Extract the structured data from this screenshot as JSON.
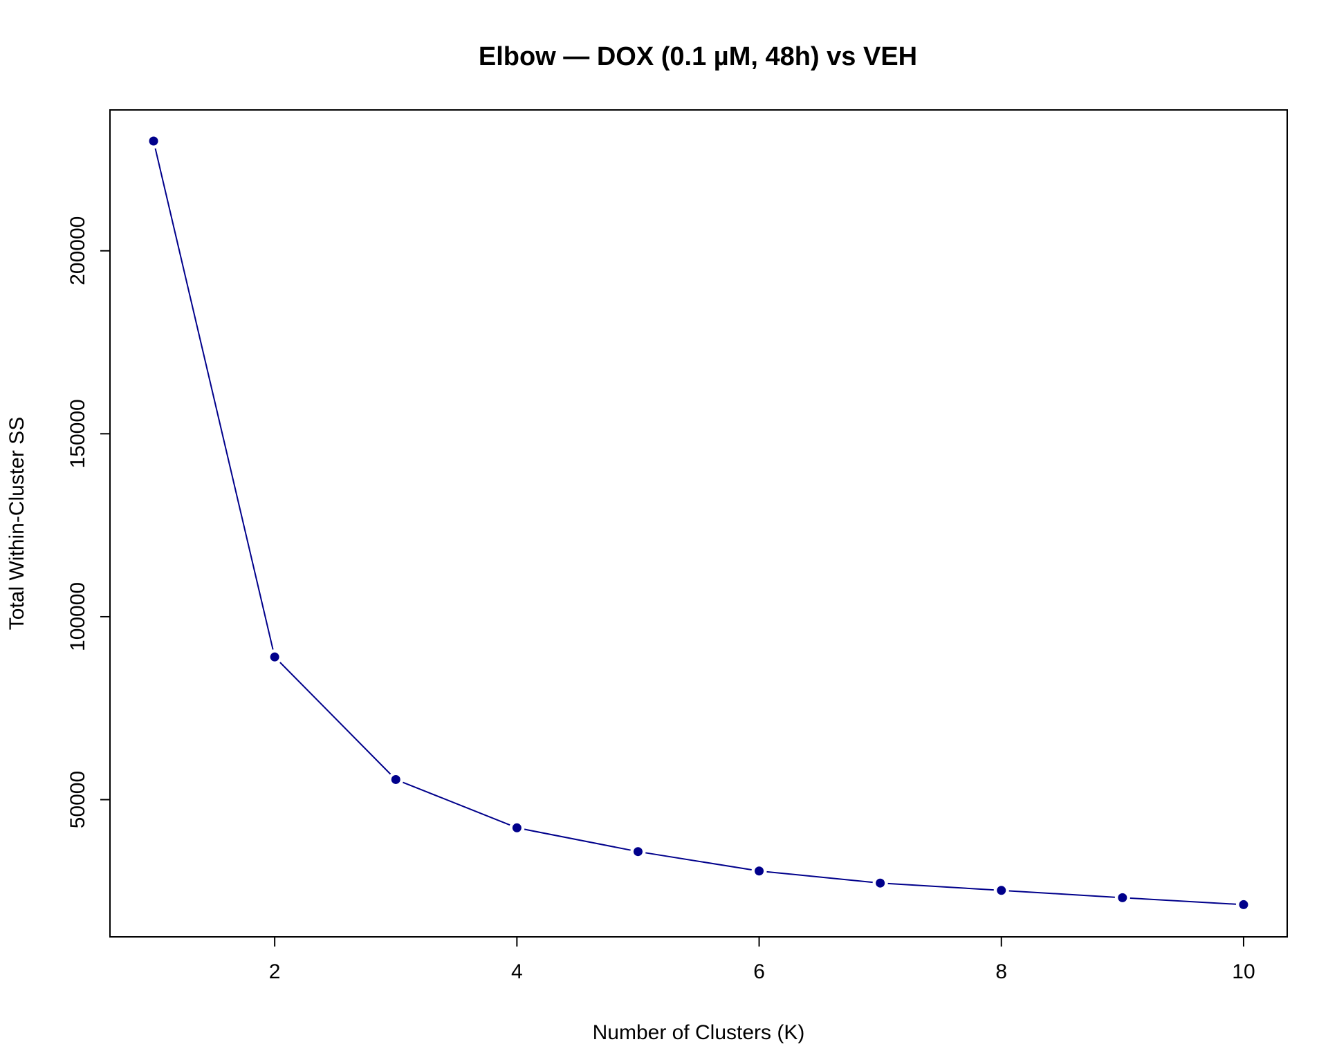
{
  "chart_data": {
    "type": "line",
    "title": "Elbow — DOX (0.1 µM, 48h) vs VEH",
    "xlabel": "Number of Clusters (K)",
    "ylabel": "Total Within-Cluster SS",
    "x": [
      1,
      2,
      3,
      4,
      5,
      6,
      7,
      8,
      9,
      10
    ],
    "y": [
      230000,
      89000,
      55500,
      42300,
      35800,
      30500,
      27200,
      25200,
      23200,
      21300
    ],
    "xlim": [
      0.64,
      10.36
    ],
    "ylim": [
      12500,
      238500
    ],
    "xticks": [
      2,
      4,
      6,
      8,
      10
    ],
    "yticks": [
      50000,
      100000,
      150000,
      200000
    ],
    "grid": false,
    "markers": "filled-circle",
    "color": "#00008B"
  }
}
